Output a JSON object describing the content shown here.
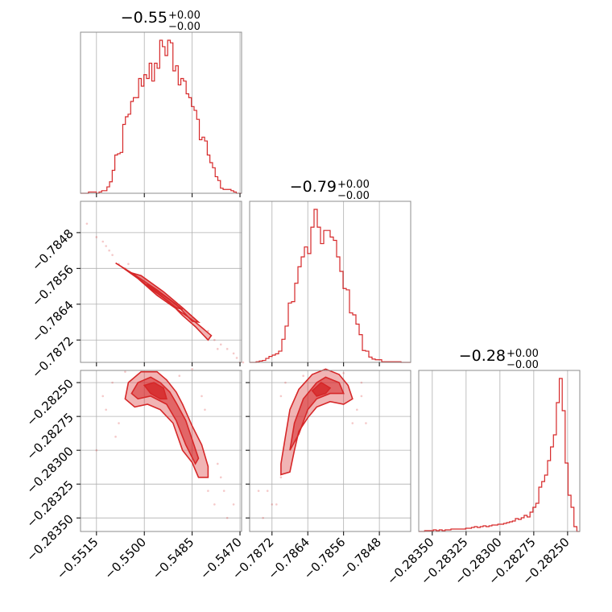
{
  "chart_data": {
    "type": "corner",
    "color": "#d62728",
    "grid": true,
    "parameters": [
      {
        "title": "−0.55",
        "title_plus": "+0.00",
        "title_minus": "−0.00",
        "range": [
          -0.552,
          -0.54695
        ],
        "ticks": [
          {
            "value": -0.5515,
            "label": "−0.5515"
          },
          {
            "value": -0.55,
            "label": "−0.5500"
          },
          {
            "value": -0.5485,
            "label": "−0.5485"
          },
          {
            "value": -0.547,
            "label": "−0.5470"
          }
        ]
      },
      {
        "title": "−0.79",
        "title_plus": "+0.00",
        "title_minus": "−0.00",
        "range": [
          -0.7877,
          -0.7841
        ],
        "ticks": [
          {
            "value": -0.7872,
            "label": "−0.7872"
          },
          {
            "value": -0.7864,
            "label": "−0.7864"
          },
          {
            "value": -0.7856,
            "label": "−0.7856"
          },
          {
            "value": -0.7848,
            "label": "−0.7848"
          }
        ]
      },
      {
        "title": "−0.28",
        "title_plus": "+0.00",
        "title_minus": "−0.00",
        "range": [
          -0.2836,
          -0.28241
        ],
        "ticks": [
          {
            "value": -0.2835,
            "label": "−0.28350"
          },
          {
            "value": -0.28325,
            "label": "−0.28325"
          },
          {
            "value": -0.283,
            "label": "−0.28300"
          },
          {
            "value": -0.28275,
            "label": "−0.28275"
          },
          {
            "value": -0.2825,
            "label": "−0.28250"
          }
        ]
      }
    ],
    "histograms": [
      {
        "param": 0,
        "bin_edges_start": -0.552,
        "counts": [
          0,
          0,
          0,
          1,
          1,
          1,
          0,
          1,
          2,
          2,
          5,
          9,
          18,
          30,
          31,
          32,
          54,
          60,
          62,
          72,
          75,
          75,
          90,
          84,
          93,
          90,
          102,
          88,
          102,
          98,
          120,
          115,
          108,
          120,
          118,
          96,
          100,
          85,
          90,
          88,
          78,
          75,
          68,
          65,
          58,
          42,
          44,
          41,
          30,
          24,
          20,
          13,
          10,
          4,
          3,
          3,
          3,
          2,
          1,
          0,
          0
        ],
        "max": 120
      },
      {
        "param": 1,
        "bin_edges_start": -0.7877,
        "counts": [
          0,
          0,
          1,
          2,
          3,
          6,
          9,
          11,
          13,
          17,
          35,
          55,
          90,
          92,
          120,
          145,
          160,
          175,
          165,
          205,
          232,
          205,
          180,
          200,
          200,
          190,
          185,
          160,
          138,
          112,
          110,
          75,
          72,
          58,
          42,
          18,
          17,
          8,
          5,
          4,
          4,
          1,
          1,
          1,
          1,
          1,
          1,
          0,
          0,
          0
        ],
        "max": 232
      },
      {
        "param": 2,
        "bin_edges_start": -0.2836,
        "counts": [
          0,
          0,
          1,
          1,
          1,
          2,
          1,
          2,
          1,
          2,
          2,
          3,
          3,
          3,
          3,
          3,
          4,
          4,
          5,
          6,
          5,
          6,
          7,
          6,
          7,
          8,
          8,
          9,
          9,
          10,
          11,
          12,
          13,
          16,
          15,
          17,
          20,
          18,
          24,
          30,
          35,
          55,
          62,
          70,
          88,
          105,
          120,
          160,
          190,
          150,
          85,
          45,
          30,
          6,
          0
        ],
        "max": 190
      }
    ],
    "pairs": [
      {
        "x_param": 0,
        "y_param": 1,
        "contours": [
          [
            [
              -0.5508,
              -0.78552
            ],
            [
              -0.5499,
              -0.78598
            ],
            [
              -0.5492,
              -0.78636
            ],
            [
              -0.5488,
              -0.78665
            ],
            [
              -0.5484,
              -0.7869
            ],
            [
              -0.548,
              -0.7872
            ],
            [
              -0.5479,
              -0.7871
            ],
            [
              -0.5484,
              -0.7868
            ],
            [
              -0.5488,
              -0.7866
            ],
            [
              -0.5496,
              -0.7862
            ],
            [
              -0.5504,
              -0.7857
            ],
            [
              -0.5509,
              -0.78548
            ]
          ],
          [
            [
              -0.5504,
              -0.7857
            ],
            [
              -0.5496,
              -0.78608
            ],
            [
              -0.549,
              -0.7864
            ],
            [
              -0.5485,
              -0.78678
            ],
            [
              -0.5483,
              -0.7868
            ],
            [
              -0.5488,
              -0.78648
            ],
            [
              -0.5494,
              -0.78612
            ],
            [
              -0.5501,
              -0.78576
            ]
          ],
          [
            [
              -0.5499,
              -0.78596
            ],
            [
              -0.5492,
              -0.7863
            ],
            [
              -0.5488,
              -0.78652
            ],
            [
              -0.549,
              -0.78648
            ],
            [
              -0.5494,
              -0.78626
            ],
            [
              -0.5499,
              -0.786
            ]
          ]
        ],
        "points": [
          [
            -0.5518,
            -0.7846
          ],
          [
            -0.5515,
            -0.7849
          ],
          [
            -0.5513,
            -0.785
          ],
          [
            -0.5511,
            -0.7852
          ],
          [
            -0.551,
            -0.7853
          ],
          [
            -0.5508,
            -0.7855
          ],
          [
            -0.5506,
            -0.7856
          ],
          [
            -0.5478,
            -0.7872
          ],
          [
            -0.5476,
            -0.7873
          ],
          [
            -0.5474,
            -0.7874
          ],
          [
            -0.5472,
            -0.7875
          ],
          [
            -0.5471,
            -0.7876
          ],
          [
            -0.547,
            -0.7877
          ],
          [
            -0.5512,
            -0.7851
          ],
          [
            -0.5505,
            -0.7855
          ],
          [
            -0.548,
            -0.787
          ],
          [
            -0.5477,
            -0.7874
          ],
          [
            -0.5469,
            -0.7877
          ]
        ]
      },
      {
        "x_param": 0,
        "y_param": 2,
        "contours": [
          [
            [
              -0.5506,
              -0.28262
            ],
            [
              -0.5505,
              -0.2825
            ],
            [
              -0.5501,
              -0.28242
            ],
            [
              -0.5496,
              -0.28242
            ],
            [
              -0.5493,
              -0.28248
            ],
            [
              -0.549,
              -0.28257
            ],
            [
              -0.5488,
              -0.28266
            ],
            [
              -0.5485,
              -0.28282
            ],
            [
              -0.5482,
              -0.28296
            ],
            [
              -0.548,
              -0.28312
            ],
            [
              -0.548,
              -0.2832
            ],
            [
              -0.5483,
              -0.2832
            ],
            [
              -0.5485,
              -0.28309
            ],
            [
              -0.5488,
              -0.283
            ],
            [
              -0.5491,
              -0.2828
            ],
            [
              -0.5495,
              -0.2827
            ],
            [
              -0.5499,
              -0.28266
            ],
            [
              -0.5503,
              -0.28268
            ]
          ],
          [
            [
              -0.5504,
              -0.28258
            ],
            [
              -0.5502,
              -0.2825
            ],
            [
              -0.5498,
              -0.28246
            ],
            [
              -0.5495,
              -0.2825
            ],
            [
              -0.5492,
              -0.28257
            ],
            [
              -0.549,
              -0.28265
            ],
            [
              -0.5487,
              -0.28278
            ],
            [
              -0.5485,
              -0.28292
            ],
            [
              -0.5483,
              -0.28306
            ],
            [
              -0.5484,
              -0.2831
            ],
            [
              -0.5487,
              -0.28296
            ],
            [
              -0.549,
              -0.28278
            ],
            [
              -0.5493,
              -0.28266
            ],
            [
              -0.5498,
              -0.2826
            ],
            [
              -0.5502,
              -0.28262
            ]
          ],
          [
            [
              -0.55,
              -0.28252
            ],
            [
              -0.5497,
              -0.2825
            ],
            [
              -0.5494,
              -0.28254
            ],
            [
              -0.5493,
              -0.28262
            ],
            [
              -0.5495,
              -0.28262
            ],
            [
              -0.5498,
              -0.28258
            ]
          ]
        ],
        "points": [
          [
            -0.551,
            -0.2825
          ],
          [
            -0.5512,
            -0.2827
          ],
          [
            -0.5508,
            -0.2828
          ],
          [
            -0.5515,
            -0.283
          ],
          [
            -0.5509,
            -0.2829
          ],
          [
            -0.548,
            -0.2833
          ],
          [
            -0.5478,
            -0.2834
          ],
          [
            -0.5476,
            -0.2832
          ],
          [
            -0.5474,
            -0.2835
          ],
          [
            -0.5477,
            -0.2831
          ],
          [
            -0.5485,
            -0.2824
          ],
          [
            -0.5482,
            -0.2826
          ],
          [
            -0.5506,
            -0.28242
          ],
          [
            -0.5489,
            -0.28245
          ],
          [
            -0.5481,
            -0.2827
          ],
          [
            -0.5513,
            -0.2826
          ],
          [
            -0.5475,
            -0.2833
          ],
          [
            -0.5472,
            -0.2834
          ]
        ]
      },
      {
        "x_param": 1,
        "y_param": 2,
        "contours": [
          [
            [
              -0.787,
              -0.2831
            ],
            [
              -0.7869,
              -0.2829
            ],
            [
              -0.7868,
              -0.2827
            ],
            [
              -0.7866,
              -0.28255
            ],
            [
              -0.7863,
              -0.28244
            ],
            [
              -0.786,
              -0.2824
            ],
            [
              -0.7857,
              -0.28244
            ],
            [
              -0.7855,
              -0.28252
            ],
            [
              -0.7854,
              -0.28262
            ],
            [
              -0.7856,
              -0.28266
            ],
            [
              -0.7859,
              -0.28264
            ],
            [
              -0.7862,
              -0.28268
            ],
            [
              -0.7864,
              -0.28276
            ],
            [
              -0.7866,
              -0.28286
            ],
            [
              -0.7867,
              -0.283
            ],
            [
              -0.7868,
              -0.28316
            ],
            [
              -0.787,
              -0.28318
            ]
          ],
          [
            [
              -0.7868,
              -0.283
            ],
            [
              -0.7867,
              -0.2828
            ],
            [
              -0.7865,
              -0.28262
            ],
            [
              -0.7862,
              -0.2825
            ],
            [
              -0.786,
              -0.28246
            ],
            [
              -0.7857,
              -0.2825
            ],
            [
              -0.7856,
              -0.28258
            ],
            [
              -0.7859,
              -0.28258
            ],
            [
              -0.7862,
              -0.28262
            ],
            [
              -0.7864,
              -0.2827
            ],
            [
              -0.7866,
              -0.28288
            ]
          ],
          [
            [
              -0.7863,
              -0.28256
            ],
            [
              -0.7861,
              -0.2825
            ],
            [
              -0.7859,
              -0.28254
            ],
            [
              -0.786,
              -0.28258
            ],
            [
              -0.7862,
              -0.2826
            ]
          ]
        ],
        "points": [
          [
            -0.7873,
            -0.2833
          ],
          [
            -0.7872,
            -0.2834
          ],
          [
            -0.787,
            -0.2832
          ],
          [
            -0.7874,
            -0.2835
          ],
          [
            -0.7871,
            -0.2834
          ],
          [
            -0.7853,
            -0.2827
          ],
          [
            -0.7852,
            -0.2826
          ],
          [
            -0.7851,
            -0.2828
          ],
          [
            -0.7854,
            -0.2828
          ],
          [
            -0.7869,
            -0.2825
          ],
          [
            -0.787,
            -0.2826
          ],
          [
            -0.7865,
            -0.28245
          ],
          [
            -0.7856,
            -0.28243
          ],
          [
            -0.7852,
            -0.2825
          ],
          [
            -0.7875,
            -0.2833
          ]
        ]
      }
    ]
  }
}
